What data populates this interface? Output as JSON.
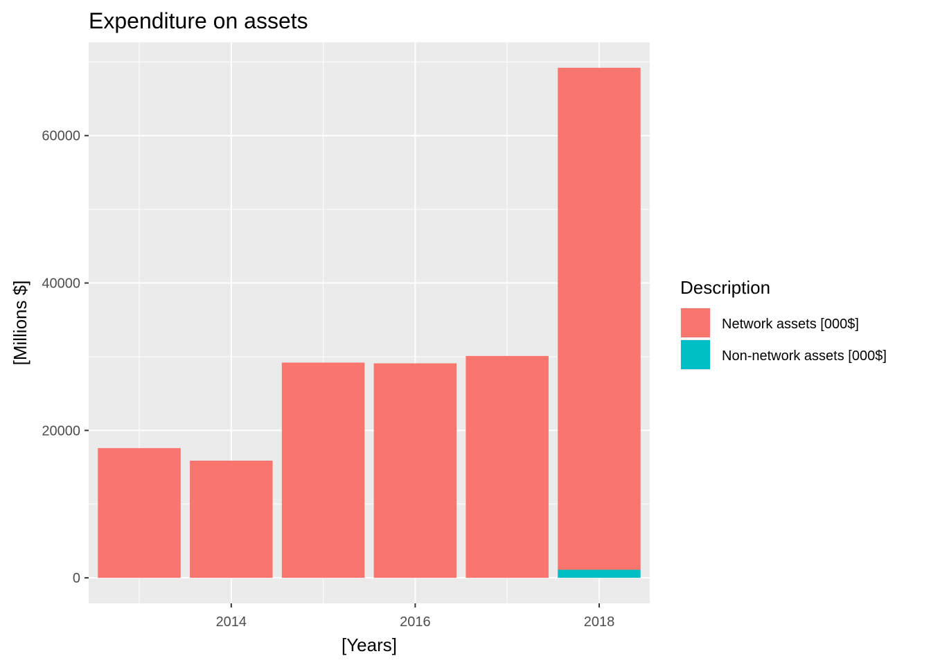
{
  "chart_data": {
    "type": "bar",
    "stacked": true,
    "title": "Expenditure on assets",
    "xlabel": "[Years]",
    "ylabel": "[Millions $]",
    "x": [
      2013,
      2014,
      2015,
      2016,
      2017,
      2018
    ],
    "series": [
      {
        "name": "Network assets [000$]",
        "color": "#F8766D",
        "values": [
          17600,
          15900,
          29200,
          29100,
          30100,
          68100
        ]
      },
      {
        "name": "Non-network assets [000$]",
        "color": "#00BFC4",
        "values": [
          0,
          0,
          0,
          0,
          0,
          1100
        ]
      }
    ],
    "xlim": [
      2012.45,
      2018.55
    ],
    "ylim": [
      -3460,
      72660
    ],
    "x_ticks": [
      2014,
      2016,
      2018
    ],
    "x_tick_labels": [
      "2014",
      "2016",
      "2018"
    ],
    "y_ticks": [
      0,
      20000,
      40000,
      60000
    ],
    "y_tick_labels": [
      "0",
      "20000",
      "40000",
      "60000"
    ],
    "grid": true,
    "panel_background": "#EBEBEB",
    "legend": {
      "title": "Description",
      "position": "right"
    }
  }
}
